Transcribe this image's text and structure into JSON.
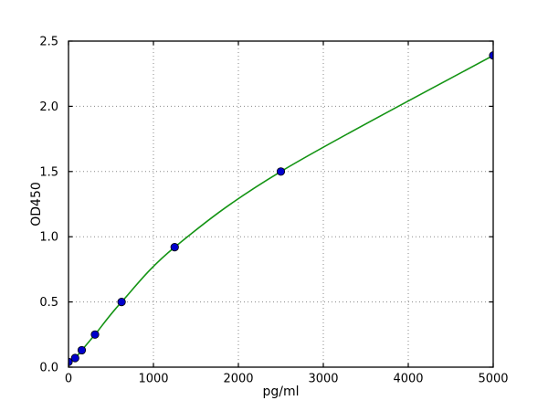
{
  "figure": {
    "background": "#ffffff"
  },
  "chart_data": {
    "type": "scatter",
    "title": "",
    "xlabel": "pg/ml",
    "ylabel": "OD450",
    "xlim": [
      0,
      5000
    ],
    "ylim": [
      0,
      2.5
    ],
    "xticks": [
      0,
      1000,
      2000,
      3000,
      4000,
      5000
    ],
    "xtick_labels": [
      "0",
      "1000",
      "2000",
      "3000",
      "4000",
      "5000"
    ],
    "yticks": [
      0,
      0.5,
      1,
      1.5,
      2,
      2.5
    ],
    "ytick_labels": [
      "0.0",
      "0.5",
      "1.0",
      "1.5",
      "2.0",
      "2.5"
    ],
    "grid": true,
    "grid_style": "dotted",
    "legend_position": "none",
    "series": [
      {
        "name": "standard-points",
        "type": "scatter",
        "x": [
          0,
          78,
          156,
          312,
          625,
          1250,
          2500,
          5000
        ],
        "y": [
          0.04,
          0.07,
          0.13,
          0.25,
          0.5,
          0.92,
          1.5,
          2.39
        ],
        "marker": "circle",
        "marker_color": "#0000cc",
        "marker_edge_color": "#000000"
      },
      {
        "name": "fit-curve",
        "type": "line",
        "x": [
          0,
          78,
          156,
          312,
          625,
          1250,
          2500,
          5000
        ],
        "y": [
          0.03,
          0.07,
          0.13,
          0.25,
          0.5,
          0.92,
          1.5,
          2.39
        ],
        "color": "#149414"
      }
    ],
    "colors": {
      "axis": "#000000",
      "grid": "#8a8a8a",
      "background": "#ffffff"
    }
  }
}
